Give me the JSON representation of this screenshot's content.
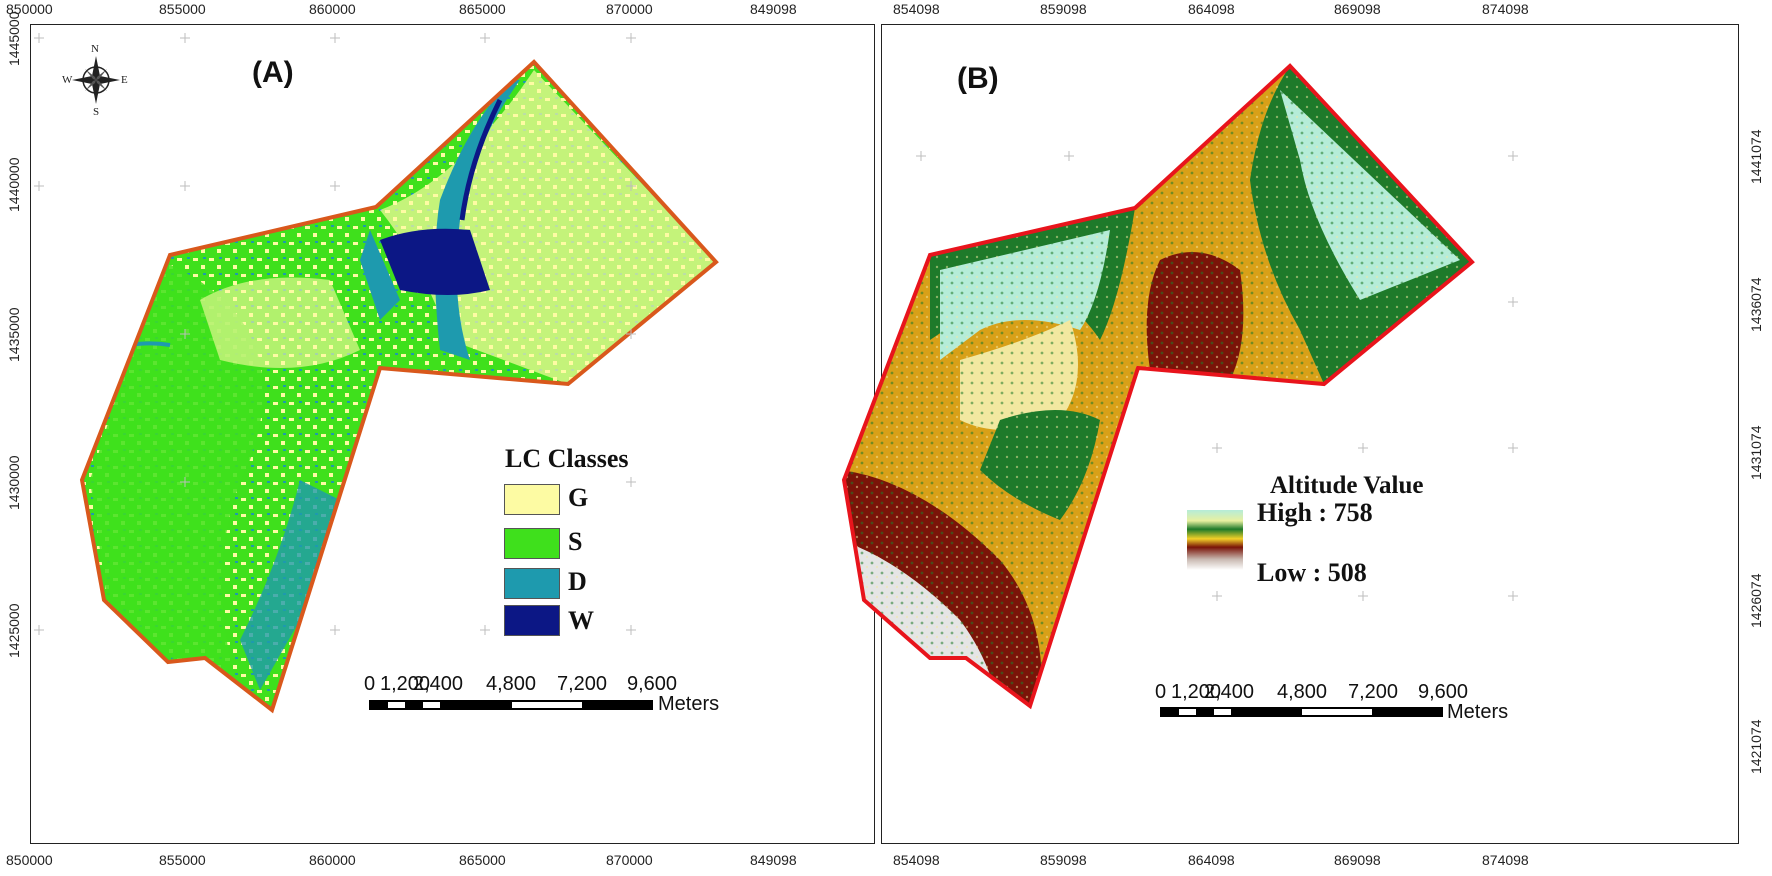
{
  "panel_a": {
    "title": "(A)",
    "x_ticks_top": [
      "850000",
      "855000",
      "860000",
      "865000",
      "870000"
    ],
    "x_ticks_bottom": [
      "850000",
      "855000",
      "860000",
      "865000",
      "870000"
    ],
    "y_ticks": [
      "1445000",
      "1440000",
      "1435000",
      "1430000",
      "1425000"
    ],
    "compass": {
      "n": "N",
      "s": "S",
      "e": "E",
      "w": "W"
    },
    "legend": {
      "title": "LC Classes",
      "items": [
        {
          "label": "G",
          "color": "#fdfba3"
        },
        {
          "label": "S",
          "color": "#3fe01c"
        },
        {
          "label": "D",
          "color": "#1e9aae"
        },
        {
          "label": "W",
          "color": "#0c1785"
        }
      ]
    },
    "boundary_color": "#d9581c",
    "scale": {
      "labels": [
        "0",
        "1,200",
        "2,400",
        "4,800",
        "7,200",
        "9,600"
      ],
      "unit": "Meters"
    }
  },
  "panel_b": {
    "title": "(B)",
    "x_ticks_top": [
      "849098",
      "854098",
      "859098",
      "864098",
      "869098",
      "874098"
    ],
    "x_ticks_bottom": [
      "849098",
      "854098",
      "859098",
      "864098",
      "869098",
      "874098"
    ],
    "y_ticks": [
      "1441074",
      "1436074",
      "1431074",
      "1426074",
      "1421074"
    ],
    "legend": {
      "title": "Altitude Value",
      "high": "High : 758",
      "low": "Low : 508"
    },
    "boundary_color": "#e8141c",
    "scale": {
      "labels": [
        "0",
        "1,200",
        "2,400",
        "4,800",
        "7,200",
        "9,600"
      ],
      "unit": "Meters"
    }
  }
}
